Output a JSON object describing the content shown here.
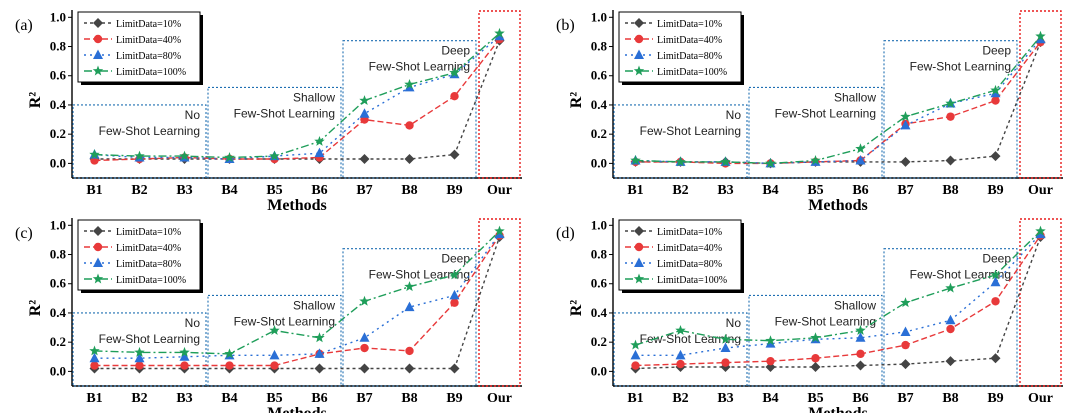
{
  "colors": {
    "s10": "#444444",
    "s40": "#e8393a",
    "s80": "#2a6fd6",
    "s100": "#1f9e5a",
    "group_box": "#1f6fb2",
    "our_box": "#e81c1c"
  },
  "chart_data": [
    {
      "type": "line",
      "panel_label": "(a)",
      "xlabel": "Methods",
      "ylabel": "R²",
      "ylim": [
        0,
        1.0
      ],
      "yticks": [
        "0.0",
        "0.2",
        "0.4",
        "0.6",
        "0.8",
        "1.0"
      ],
      "categories": [
        "B1",
        "B2",
        "B3",
        "B4",
        "B5",
        "B6",
        "B7",
        "B8",
        "B9",
        "Our"
      ],
      "groups": [
        {
          "line1": "No",
          "line2": "Few-Shot Learning"
        },
        {
          "line1": "Shallow",
          "line2": "Few-Shot Learning"
        },
        {
          "line1": "Deep",
          "line2": "Few-Shot Learning"
        }
      ],
      "legend_position": "top-left",
      "series": [
        {
          "name": "LimitData=10%",
          "values": [
            0.03,
            0.03,
            0.03,
            0.03,
            0.03,
            0.03,
            0.03,
            0.03,
            0.06,
            0.84
          ]
        },
        {
          "name": "LimitData=40%",
          "values": [
            0.02,
            0.03,
            0.04,
            0.03,
            0.03,
            0.04,
            0.3,
            0.26,
            0.46,
            0.85
          ]
        },
        {
          "name": "LimitData=80%",
          "values": [
            0.06,
            0.04,
            0.04,
            0.03,
            0.05,
            0.07,
            0.34,
            0.52,
            0.61,
            0.87
          ]
        },
        {
          "name": "LimitData=100%",
          "values": [
            0.06,
            0.05,
            0.05,
            0.04,
            0.05,
            0.15,
            0.43,
            0.54,
            0.62,
            0.89
          ]
        }
      ]
    },
    {
      "type": "line",
      "panel_label": "(b)",
      "xlabel": "Methods",
      "ylabel": "R²",
      "ylim": [
        0,
        1.0
      ],
      "yticks": [
        "0.0",
        "0.2",
        "0.4",
        "0.6",
        "0.8",
        "1.0"
      ],
      "categories": [
        "B1",
        "B2",
        "B3",
        "B4",
        "B5",
        "B6",
        "B7",
        "B8",
        "B9",
        "Our"
      ],
      "groups": [
        {
          "line1": "No",
          "line2": "Few-Shot Learning"
        },
        {
          "line1": "Shallow",
          "line2": "Few-Shot Learning"
        },
        {
          "line1": "Deep",
          "line2": "Few-Shot Learning"
        }
      ],
      "legend_position": "top-left",
      "series": [
        {
          "name": "LimitData=10%",
          "values": [
            0.01,
            0.01,
            0.01,
            0.0,
            0.01,
            0.01,
            0.01,
            0.02,
            0.05,
            0.83
          ]
        },
        {
          "name": "LimitData=40%",
          "values": [
            0.01,
            0.01,
            0.0,
            0.0,
            0.01,
            0.02,
            0.27,
            0.32,
            0.43,
            0.83
          ]
        },
        {
          "name": "LimitData=80%",
          "values": [
            0.02,
            0.01,
            0.01,
            0.0,
            0.01,
            0.02,
            0.26,
            0.41,
            0.48,
            0.85
          ]
        },
        {
          "name": "LimitData=100%",
          "values": [
            0.02,
            0.01,
            0.01,
            0.0,
            0.02,
            0.1,
            0.32,
            0.41,
            0.5,
            0.87
          ]
        }
      ]
    },
    {
      "type": "line",
      "panel_label": "(c)",
      "xlabel": "Methods",
      "ylabel": "R²",
      "ylim": [
        0,
        1.0
      ],
      "yticks": [
        "0.0",
        "0.2",
        "0.4",
        "0.6",
        "0.8",
        "1.0"
      ],
      "categories": [
        "B1",
        "B2",
        "B3",
        "B4",
        "B5",
        "B6",
        "B7",
        "B8",
        "B9",
        "Our"
      ],
      "groups": [
        {
          "line1": "No",
          "line2": "Few-Shot Learning"
        },
        {
          "line1": "Shallow",
          "line2": "Few-Shot Learning"
        },
        {
          "line1": "Deep",
          "line2": "Few-Shot Learning"
        }
      ],
      "legend_position": "top-left",
      "series": [
        {
          "name": "LimitData=10%",
          "values": [
            0.02,
            0.02,
            0.02,
            0.02,
            0.02,
            0.02,
            0.02,
            0.02,
            0.02,
            0.92
          ]
        },
        {
          "name": "LimitData=40%",
          "values": [
            0.04,
            0.04,
            0.04,
            0.04,
            0.04,
            0.12,
            0.16,
            0.14,
            0.47,
            0.93
          ]
        },
        {
          "name": "LimitData=80%",
          "values": [
            0.09,
            0.09,
            0.1,
            0.11,
            0.11,
            0.12,
            0.23,
            0.44,
            0.52,
            0.94
          ]
        },
        {
          "name": "LimitData=100%",
          "values": [
            0.14,
            0.13,
            0.13,
            0.12,
            0.28,
            0.23,
            0.48,
            0.58,
            0.66,
            0.96
          ]
        }
      ]
    },
    {
      "type": "line",
      "panel_label": "(d)",
      "xlabel": "Methods",
      "ylabel": "R²",
      "ylim": [
        0,
        1.0
      ],
      "yticks": [
        "0.0",
        "0.2",
        "0.4",
        "0.6",
        "0.8",
        "1.0"
      ],
      "categories": [
        "B1",
        "B2",
        "B3",
        "B4",
        "B5",
        "B6",
        "B7",
        "B8",
        "B9",
        "Our"
      ],
      "groups": [
        {
          "line1": "No",
          "line2": "Few-Shot Learning"
        },
        {
          "line1": "Shallow",
          "line2": "Few-Shot Learning"
        },
        {
          "line1": "Deep",
          "line2": "Few-Shot Learning"
        }
      ],
      "legend_position": "top-left",
      "series": [
        {
          "name": "LimitData=10%",
          "values": [
            0.02,
            0.03,
            0.03,
            0.03,
            0.03,
            0.04,
            0.05,
            0.07,
            0.09,
            0.92
          ]
        },
        {
          "name": "LimitData=40%",
          "values": [
            0.04,
            0.05,
            0.06,
            0.07,
            0.09,
            0.12,
            0.18,
            0.29,
            0.48,
            0.93
          ]
        },
        {
          "name": "LimitData=80%",
          "values": [
            0.11,
            0.11,
            0.16,
            0.19,
            0.22,
            0.23,
            0.27,
            0.35,
            0.61,
            0.94
          ]
        },
        {
          "name": "LimitData=100%",
          "values": [
            0.18,
            0.28,
            0.22,
            0.21,
            0.23,
            0.28,
            0.47,
            0.57,
            0.66,
            0.96
          ]
        }
      ]
    }
  ]
}
